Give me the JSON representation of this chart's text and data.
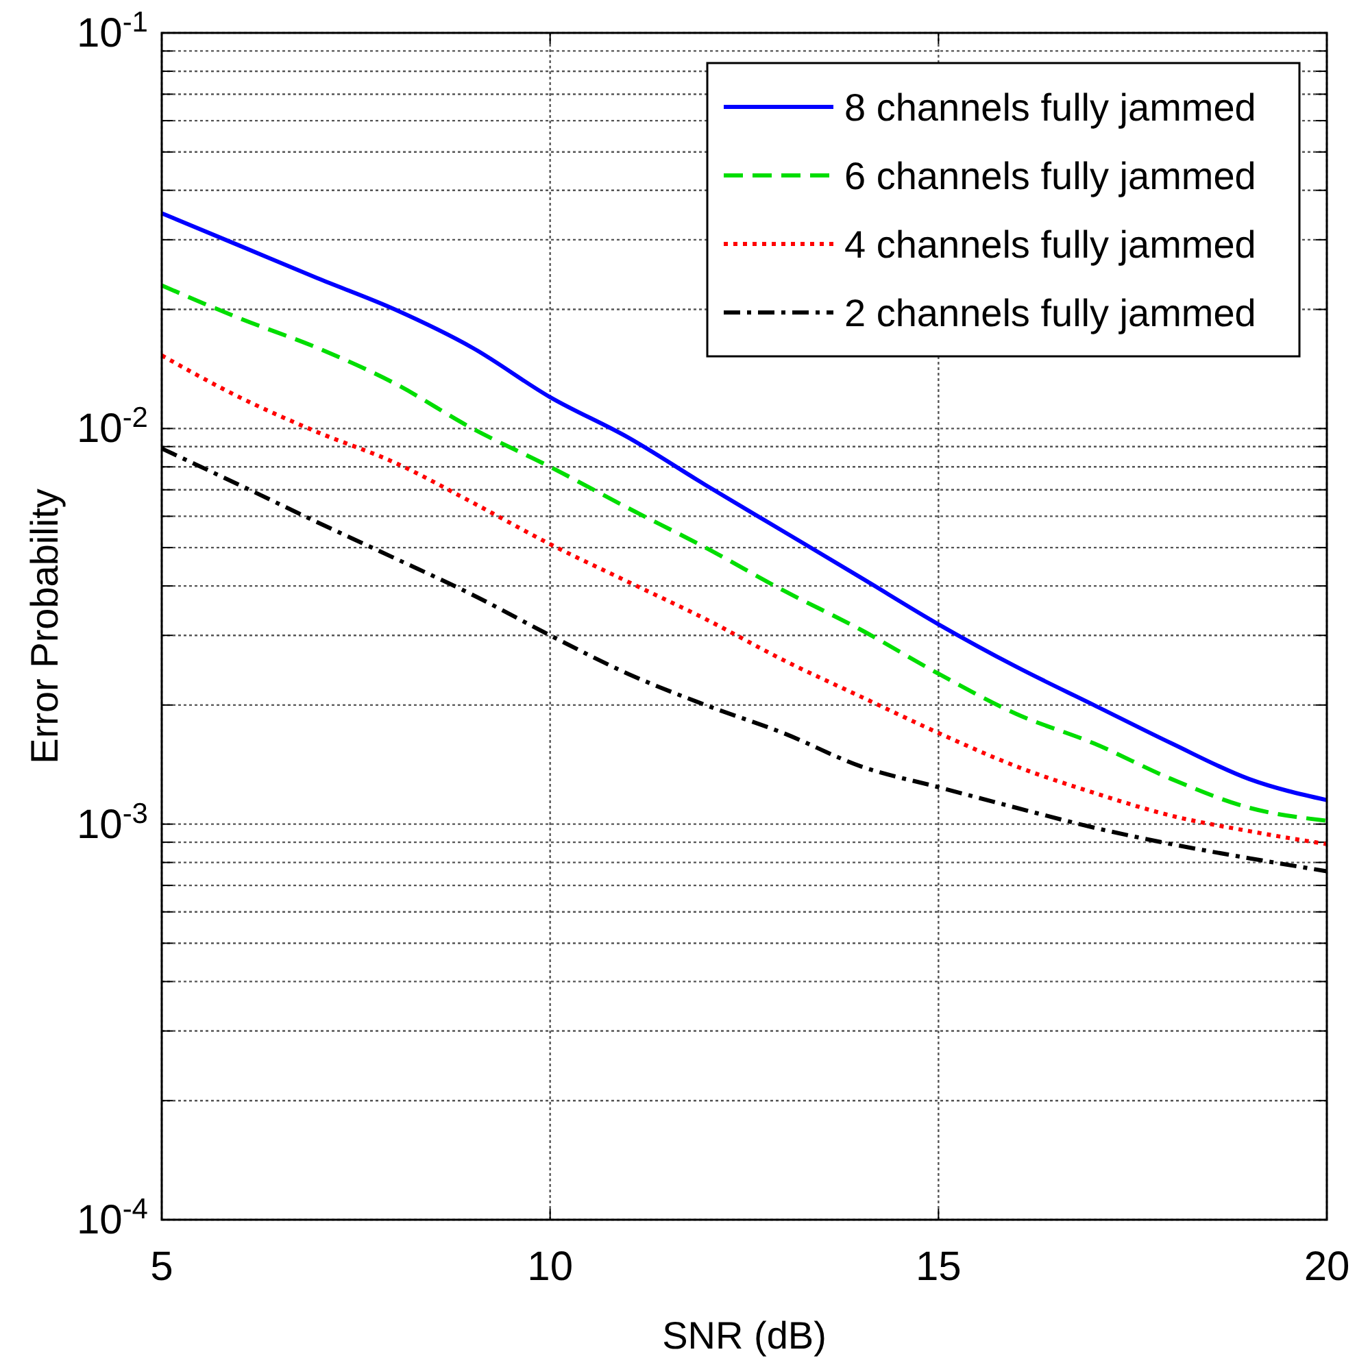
{
  "chart_data": {
    "type": "line",
    "xlabel": "SNR (dB)",
    "ylabel": "Error Probability",
    "x": [
      5,
      6,
      7,
      8,
      9,
      10,
      11,
      12,
      13,
      14,
      15,
      16,
      17,
      18,
      19,
      20
    ],
    "series": [
      {
        "name": "8 channels fully jammed",
        "color": "#0000ff",
        "line_style": "solid",
        "values": [
          0.035,
          0.029,
          0.024,
          0.02,
          0.016,
          0.012,
          0.0095,
          0.0072,
          0.0055,
          0.0042,
          0.0032,
          0.0025,
          0.002,
          0.0016,
          0.0013,
          0.00115
        ]
      },
      {
        "name": "6 channels fully jammed",
        "color": "#00dd00",
        "line_style": "dashed",
        "values": [
          0.023,
          0.019,
          0.016,
          0.013,
          0.01,
          0.008,
          0.0063,
          0.005,
          0.0039,
          0.0031,
          0.0024,
          0.0019,
          0.0016,
          0.0013,
          0.0011,
          0.00102
        ]
      },
      {
        "name": "4 channels fully jammed",
        "color": "#ff0000",
        "line_style": "dotted",
        "values": [
          0.0153,
          0.012,
          0.0098,
          0.0082,
          0.0065,
          0.0051,
          0.0041,
          0.0033,
          0.0026,
          0.0021,
          0.0017,
          0.0014,
          0.0012,
          0.00105,
          0.00096,
          0.00089
        ]
      },
      {
        "name": "2 channels fully jammed",
        "color": "#000000",
        "line_style": "dashdot",
        "values": [
          0.0089,
          0.0072,
          0.0058,
          0.0047,
          0.0038,
          0.003,
          0.0024,
          0.002,
          0.0017,
          0.0014,
          0.00124,
          0.0011,
          0.00098,
          0.00089,
          0.00082,
          0.00076
        ]
      }
    ],
    "xlim": [
      5,
      20
    ],
    "xticks": [
      5,
      10,
      15,
      20
    ],
    "ylim": [
      0.0001,
      0.1
    ],
    "log": "y",
    "yticks": [
      {
        "value": 0.0001,
        "label": "10$^{-4}$"
      },
      {
        "value": 0.0002,
        "label": null
      },
      {
        "value": 0.0003,
        "label": null
      },
      {
        "value": 0.0004,
        "label": null
      },
      {
        "value": 0.0005,
        "label": null
      },
      {
        "value": 0.0006,
        "label": null
      },
      {
        "value": 0.0007,
        "label": null
      },
      {
        "value": 0.0008,
        "label": null
      },
      {
        "value": 0.0009,
        "label": null
      },
      {
        "value": 0.001,
        "label": "10$^{-3}$"
      },
      {
        "value": 0.002,
        "label": null
      },
      {
        "value": 0.003,
        "label": null
      },
      {
        "value": 0.004,
        "label": null
      },
      {
        "value": 0.005,
        "label": null
      },
      {
        "value": 0.006,
        "label": null
      },
      {
        "value": 0.007,
        "label": null
      },
      {
        "value": 0.008,
        "label": null
      },
      {
        "value": 0.009,
        "label": null
      },
      {
        "value": 0.01,
        "label": "10$^{-2}$"
      },
      {
        "value": 0.02,
        "label": null
      },
      {
        "value": 0.03,
        "label": null
      },
      {
        "value": 0.04,
        "label": null
      },
      {
        "value": 0.05,
        "label": null
      },
      {
        "value": 0.06,
        "label": null
      },
      {
        "value": 0.07,
        "label": null
      },
      {
        "value": 0.08,
        "label": null
      },
      {
        "value": 0.09,
        "label": null
      },
      {
        "value": 0.1,
        "label": "10$^{-1}$"
      }
    ],
    "grid": true,
    "legend": "top right"
  }
}
